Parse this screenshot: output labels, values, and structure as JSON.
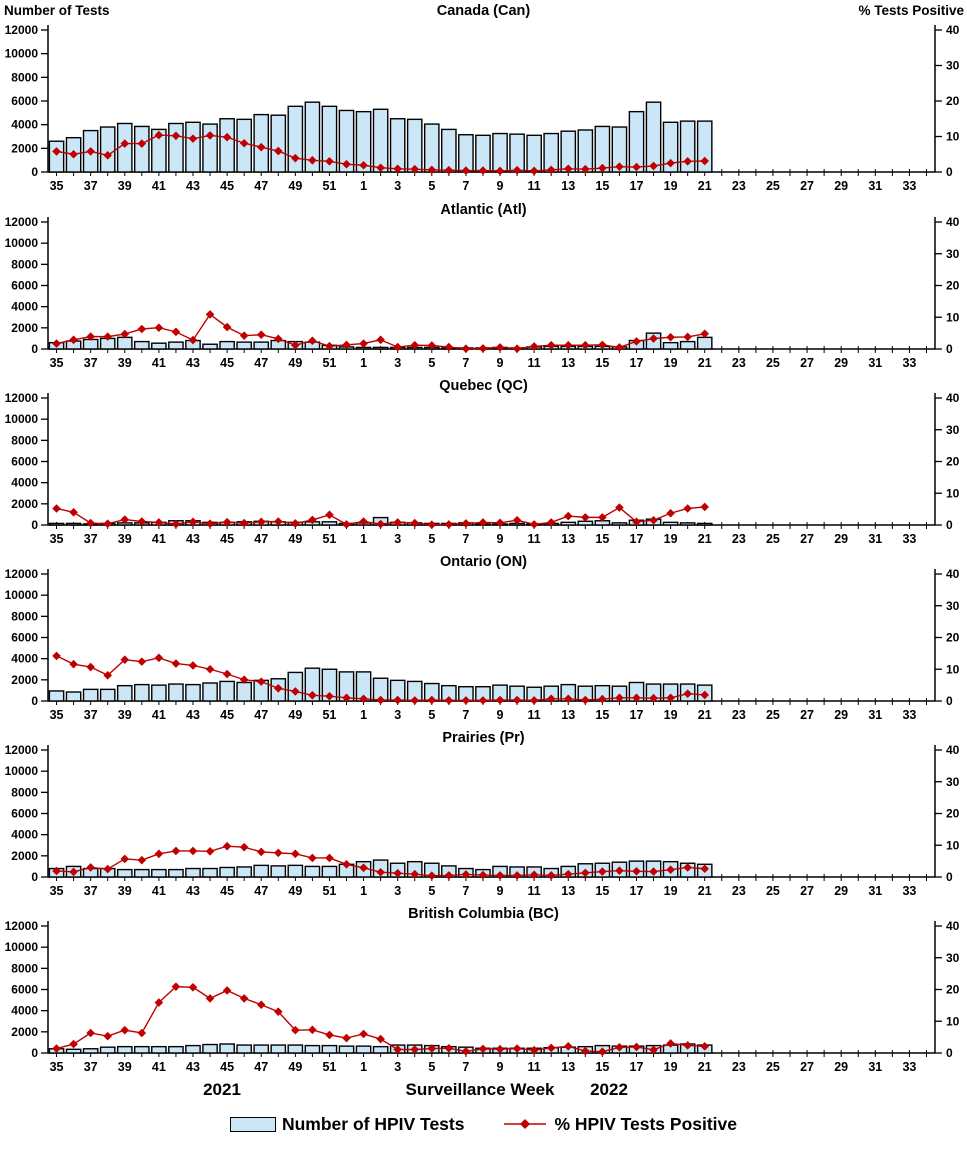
{
  "figure": {
    "left_axis_title": "Number of Tests",
    "right_axis_title": "% Tests Positive",
    "x_axis_title": "Surveillance Week",
    "year_left": "2021",
    "year_right": "2022",
    "legend": {
      "bar_label": "Number of HPIV Tests",
      "line_label": "% HPIV Tests Positive"
    },
    "colors": {
      "bar_fill": "#CBE6F7",
      "bar_stroke": "#000000",
      "line": "#C00000",
      "axis": "#000000"
    },
    "weeks": [
      35,
      36,
      37,
      38,
      39,
      40,
      41,
      42,
      43,
      44,
      45,
      46,
      47,
      48,
      49,
      50,
      51,
      52,
      1,
      2,
      3,
      4,
      5,
      6,
      7,
      8,
      9,
      10,
      11,
      12,
      13,
      14,
      15,
      16,
      17,
      18,
      19,
      20,
      21,
      22,
      23,
      24,
      25,
      26,
      27,
      28,
      29,
      30,
      31,
      32,
      33,
      34
    ],
    "xtick_labels": [
      35,
      37,
      39,
      41,
      43,
      45,
      47,
      49,
      51,
      1,
      3,
      5,
      7,
      9,
      11,
      13,
      15,
      17,
      19,
      21,
      23,
      25,
      27,
      29,
      31,
      33
    ]
  },
  "chart_data": [
    {
      "type": "bar+line",
      "title": "Canada (Can)",
      "bar_series": "Number of HPIV Tests",
      "line_series": "% HPIV Tests Positive",
      "left_ylim": [
        0,
        12000
      ],
      "right_ylim": [
        0,
        40
      ],
      "left_ticks": [
        0,
        2000,
        4000,
        6000,
        8000,
        10000,
        12000
      ],
      "right_ticks": [
        0,
        10,
        20,
        30,
        40
      ],
      "tests": [
        2600,
        2900,
        3500,
        3800,
        4100,
        3850,
        3600,
        4100,
        4200,
        4050,
        4500,
        4450,
        4850,
        4800,
        5550,
        5900,
        5550,
        5200,
        5100,
        5300,
        4500,
        4450,
        4050,
        3600,
        3150,
        3100,
        3250,
        3200,
        3100,
        3250,
        3450,
        3550,
        3850,
        3800,
        5100,
        5900,
        4200,
        4300,
        4300
      ],
      "pct_positive": [
        5.8,
        5.0,
        5.8,
        4.7,
        8.0,
        8.0,
        10.4,
        10.2,
        9.4,
        10.3,
        9.8,
        8.1,
        7.0,
        5.9,
        3.9,
        3.3,
        3.0,
        2.2,
        1.9,
        1.2,
        0.9,
        0.8,
        0.6,
        0.5,
        0.4,
        0.4,
        0.3,
        0.5,
        0.3,
        0.6,
        0.9,
        0.8,
        1.1,
        1.5,
        1.4,
        1.7,
        2.5,
        3.0,
        3.1
      ]
    },
    {
      "type": "bar+line",
      "title": "Atlantic (Atl)",
      "bar_series": "Number of HPIV Tests",
      "line_series": "% HPIV Tests Positive",
      "left_ylim": [
        0,
        12000
      ],
      "right_ylim": [
        0,
        40
      ],
      "left_ticks": [
        0,
        2000,
        4000,
        6000,
        8000,
        10000,
        12000
      ],
      "right_ticks": [
        0,
        10,
        20,
        30,
        40
      ],
      "tests": [
        600,
        750,
        900,
        1000,
        1100,
        700,
        550,
        650,
        800,
        450,
        700,
        650,
        650,
        800,
        700,
        650,
        350,
        200,
        150,
        150,
        150,
        150,
        150,
        100,
        100,
        100,
        150,
        100,
        200,
        250,
        250,
        250,
        250,
        200,
        800,
        1500,
        600,
        700,
        1100
      ],
      "pct_positive": [
        1.7,
        2.9,
        3.9,
        3.9,
        4.7,
        6.3,
        6.7,
        5.4,
        2.8,
        10.9,
        6.9,
        4.2,
        4.5,
        3.2,
        1.2,
        2.6,
        0.9,
        1.3,
        1.7,
        2.9,
        0.6,
        1.2,
        1.1,
        0.6,
        0.1,
        0.2,
        0.5,
        0.1,
        0.8,
        1.2,
        1.2,
        1.2,
        1.3,
        0.5,
        2.4,
        3.3,
        3.7,
        3.8,
        4.8
      ]
    },
    {
      "type": "bar+line",
      "title": "Quebec (QC)",
      "bar_series": "Number of HPIV Tests",
      "line_series": "% HPIV Tests Positive",
      "left_ylim": [
        0,
        12000
      ],
      "right_ylim": [
        0,
        40
      ],
      "left_ticks": [
        0,
        2000,
        4000,
        6000,
        8000,
        10000,
        12000
      ],
      "right_ticks": [
        0,
        10,
        20,
        30,
        40
      ],
      "tests": [
        150,
        150,
        100,
        150,
        200,
        200,
        250,
        400,
        400,
        250,
        250,
        300,
        350,
        300,
        250,
        300,
        300,
        150,
        200,
        700,
        250,
        200,
        150,
        150,
        200,
        100,
        100,
        150,
        100,
        150,
        250,
        350,
        400,
        200,
        450,
        550,
        250,
        200,
        150
      ],
      "pct_positive": [
        5.2,
        4.0,
        0.6,
        0.4,
        1.7,
        1.1,
        0.8,
        0.3,
        1.0,
        0.4,
        0.9,
        0.6,
        1.0,
        1.1,
        0.5,
        1.6,
        3.2,
        0.2,
        1.1,
        0.3,
        0.8,
        0.6,
        0.1,
        0.2,
        0.5,
        0.8,
        0.7,
        1.5,
        0.2,
        0.8,
        2.8,
        2.4,
        2.4,
        5.5,
        1.0,
        1.5,
        3.7,
        5.2,
        5.7
      ]
    },
    {
      "type": "bar+line",
      "title": "Ontario (ON)",
      "bar_series": "Number of HPIV Tests",
      "line_series": "% HPIV Tests Positive",
      "left_ylim": [
        0,
        12000
      ],
      "right_ylim": [
        0,
        40
      ],
      "left_ticks": [
        0,
        2000,
        4000,
        6000,
        8000,
        10000,
        12000
      ],
      "right_ticks": [
        0,
        10,
        20,
        30,
        40
      ],
      "tests": [
        950,
        850,
        1100,
        1100,
        1450,
        1550,
        1500,
        1600,
        1550,
        1700,
        1850,
        1750,
        1950,
        2100,
        2700,
        3100,
        3000,
        2750,
        2750,
        2150,
        1950,
        1850,
        1650,
        1450,
        1350,
        1350,
        1500,
        1400,
        1300,
        1400,
        1550,
        1400,
        1450,
        1400,
        1750,
        1600,
        1600,
        1600,
        1500
      ],
      "pct_positive": [
        14.2,
        11.6,
        10.7,
        8.1,
        13.0,
        12.4,
        13.6,
        11.8,
        11.2,
        10.0,
        8.5,
        6.7,
        6.1,
        4.0,
        3.0,
        1.8,
        1.5,
        1.0,
        0.7,
        0.3,
        0.3,
        0.2,
        0.3,
        0.2,
        0.2,
        0.2,
        0.3,
        0.3,
        0.2,
        0.7,
        0.7,
        0.3,
        0.6,
        1.0,
        1.0,
        0.9,
        1.0,
        2.3,
        1.9
      ]
    },
    {
      "type": "bar+line",
      "title": "Prairies (Pr)",
      "bar_series": "Number of HPIV Tests",
      "line_series": "% HPIV Tests Positive",
      "left_ylim": [
        0,
        12000
      ],
      "right_ylim": [
        0,
        40
      ],
      "left_ticks": [
        0,
        2000,
        4000,
        6000,
        8000,
        10000,
        12000
      ],
      "right_ticks": [
        0,
        10,
        20,
        30,
        40
      ],
      "tests": [
        800,
        1000,
        800,
        800,
        700,
        700,
        700,
        700,
        800,
        800,
        900,
        950,
        1100,
        1050,
        1100,
        1000,
        1000,
        1200,
        1450,
        1600,
        1300,
        1450,
        1300,
        1050,
        800,
        700,
        1000,
        950,
        950,
        800,
        1000,
        1250,
        1300,
        1400,
        1500,
        1500,
        1450,
        1300,
        1200
      ],
      "pct_positive": [
        1.9,
        1.6,
        3.0,
        2.5,
        5.7,
        5.3,
        7.3,
        8.2,
        8.2,
        8.1,
        9.7,
        9.4,
        7.9,
        7.6,
        7.3,
        6.0,
        6.0,
        4.0,
        2.9,
        1.5,
        1.2,
        0.9,
        0.4,
        0.5,
        0.8,
        0.6,
        0.5,
        0.5,
        0.7,
        0.5,
        0.9,
        1.3,
        1.7,
        2.0,
        1.8,
        1.7,
        2.3,
        3.0,
        2.6
      ]
    },
    {
      "type": "bar+line",
      "title": "British Columbia (BC)",
      "bar_series": "Number of HPIV Tests",
      "line_series": "% HPIV Tests Positive",
      "left_ylim": [
        0,
        12000
      ],
      "right_ylim": [
        0,
        40
      ],
      "left_ticks": [
        0,
        2000,
        4000,
        6000,
        8000,
        10000,
        12000
      ],
      "right_ticks": [
        0,
        10,
        20,
        30,
        40
      ],
      "tests": [
        400,
        350,
        400,
        550,
        600,
        600,
        600,
        600,
        700,
        800,
        850,
        750,
        750,
        750,
        750,
        700,
        700,
        650,
        650,
        600,
        750,
        750,
        700,
        600,
        550,
        450,
        450,
        450,
        450,
        500,
        550,
        600,
        700,
        650,
        650,
        700,
        750,
        850,
        750
      ],
      "pct_positive": [
        1.4,
        2.8,
        6.3,
        5.3,
        7.2,
        6.3,
        15.9,
        20.9,
        20.7,
        17.2,
        19.7,
        17.2,
        15.2,
        13.0,
        7.2,
        7.3,
        5.7,
        4.7,
        6.0,
        4.4,
        1.1,
        1.1,
        1.4,
        1.5,
        0.5,
        1.3,
        1.2,
        1.4,
        0.9,
        1.6,
        2.1,
        0.6,
        0.4,
        1.8,
        1.9,
        1.0,
        3.0,
        2.4,
        2.1
      ]
    }
  ]
}
